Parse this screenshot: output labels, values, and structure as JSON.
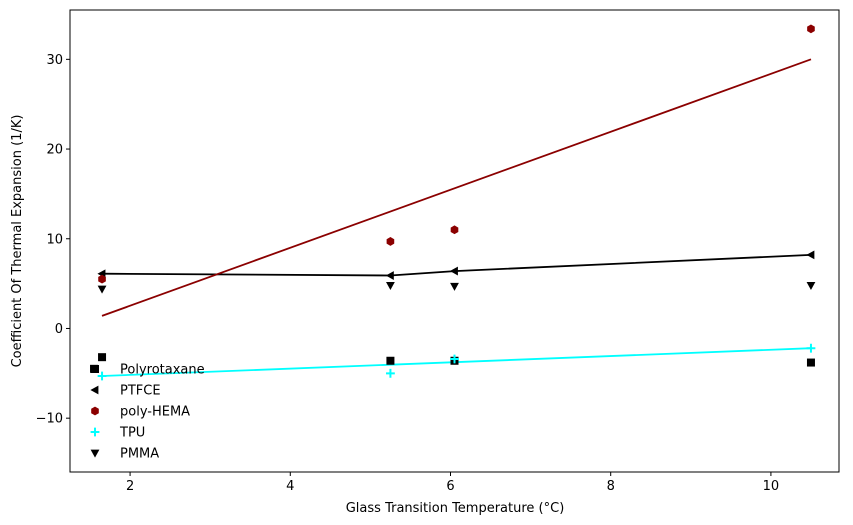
{
  "chart_data": {
    "type": "scatter",
    "title": "",
    "xlabel": "Glass Transition Temperature (°C)",
    "ylabel": "Coefficient Of Thermal Expansion (1/K)",
    "xlim": [
      1.25,
      10.85
    ],
    "ylim": [
      -16,
      35.5
    ],
    "xticks": [
      2,
      4,
      6,
      8,
      10
    ],
    "yticks": [
      -10,
      0,
      10,
      20,
      30
    ],
    "grid": false,
    "legend_position": "lower-left",
    "series": [
      {
        "name": "Polyrotaxane",
        "marker": "square",
        "color": "#000000",
        "points": [
          [
            1.55,
            -4.5
          ],
          [
            1.65,
            -3.2
          ],
          [
            5.25,
            -3.6
          ],
          [
            6.05,
            -3.6
          ],
          [
            10.5,
            -3.8
          ]
        ]
      },
      {
        "name": "PTFCE",
        "marker": "triangle-left",
        "color": "#000000",
        "points": [
          [
            1.65,
            6.1
          ],
          [
            5.25,
            5.9
          ],
          [
            6.05,
            6.4
          ],
          [
            10.5,
            8.2
          ]
        ],
        "line": [
          [
            1.65,
            6.1
          ],
          [
            5.25,
            5.9
          ],
          [
            6.05,
            6.4
          ],
          [
            10.5,
            8.2
          ]
        ],
        "line_color": "#000000"
      },
      {
        "name": "poly-HEMA",
        "marker": "hexagon",
        "color": "#8b0000",
        "points": [
          [
            1.65,
            5.5
          ],
          [
            5.25,
            9.7
          ],
          [
            6.05,
            11.0
          ],
          [
            10.5,
            33.4
          ]
        ],
        "line": [
          [
            1.65,
            1.4
          ],
          [
            10.5,
            30.0
          ]
        ],
        "line_color": "#8b0000"
      },
      {
        "name": "TPU",
        "marker": "plus",
        "color": "#00ffff",
        "points": [
          [
            1.65,
            -5.3
          ],
          [
            5.25,
            -5.0
          ],
          [
            6.05,
            -3.4
          ],
          [
            10.5,
            -2.2
          ]
        ],
        "line": [
          [
            1.65,
            -5.3
          ],
          [
            10.5,
            -2.2
          ]
        ],
        "line_color": "#00ffff"
      },
      {
        "name": "PMMA",
        "marker": "triangle-down",
        "color": "#000000",
        "points": [
          [
            1.65,
            4.4
          ],
          [
            5.25,
            4.8
          ],
          [
            6.05,
            4.7
          ],
          [
            10.5,
            4.8
          ]
        ]
      }
    ]
  }
}
